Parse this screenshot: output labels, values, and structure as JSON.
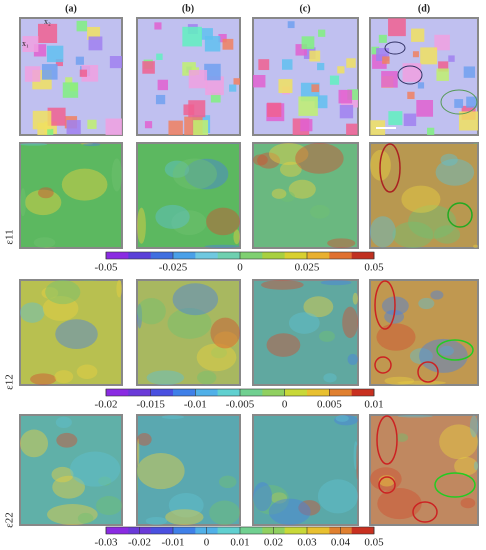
{
  "columns": [
    "(a)",
    "(b)",
    "(c)",
    "(d)"
  ],
  "axes_labels": {
    "x2": "x₂",
    "x1": "x₁"
  },
  "rows": [
    {
      "label": "ε11"
    },
    {
      "label": "ε12"
    },
    {
      "label": "ε22"
    }
  ],
  "colorbars": [
    {
      "lim": [
        -0.05,
        0.05
      ],
      "ticks": [
        -0.05,
        -0.025,
        0,
        0.025,
        0.05
      ],
      "colors": [
        "#8a2be2",
        "#5a3fd8",
        "#3f6fe0",
        "#4aa0e8",
        "#6fc8e0",
        "#6fd0b0",
        "#7fd070",
        "#a8d040",
        "#d8d030",
        "#e8b030",
        "#e07030",
        "#c03020"
      ]
    },
    {
      "lim": [
        -0.02,
        0.01
      ],
      "ticks": [
        -0.02,
        -0.015,
        -0.01,
        -0.005,
        0,
        0.005,
        0.01
      ],
      "colors": [
        "#8a2be2",
        "#6a3ad8",
        "#4a50e0",
        "#3f80e8",
        "#50b0e8",
        "#60d0d0",
        "#70d090",
        "#90d060",
        "#c8d838",
        "#e8c030",
        "#e08030",
        "#c83020"
      ]
    },
    {
      "lim": [
        -0.03,
        0.05
      ],
      "ticks": [
        -0.03,
        -0.02,
        -0.01,
        0,
        0.01,
        0.02,
        0.03,
        0.04,
        0.05
      ],
      "colors": [
        "#8a2be2",
        "#6a3ad8",
        "#4a50e0",
        "#3f80e8",
        "#50b0e8",
        "#60d0d0",
        "#70d090",
        "#90d060",
        "#c8d838",
        "#e8c030",
        "#e08030",
        "#c83020"
      ]
    }
  ]
}
